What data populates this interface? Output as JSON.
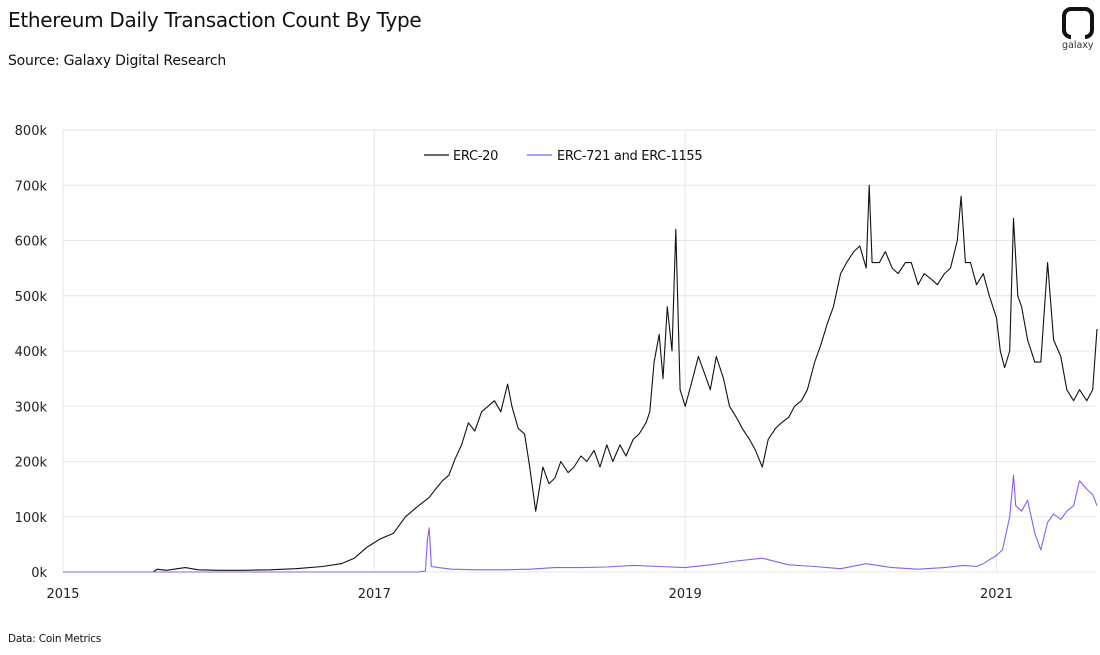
{
  "title": "Ethereum Daily Transaction Count By Type",
  "subtitle": "Source: Galaxy Digital Research",
  "footnote": "Data: Coin Metrics",
  "logo": {
    "text": "galaxy",
    "icon": "galaxy-logo-icon"
  },
  "colors": {
    "erc20": "#111111",
    "nft": "#8b5cf6",
    "grid": "#e6e6e6"
  },
  "chart_data": {
    "type": "line",
    "title": "Ethereum Daily Transaction Count By Type",
    "subtitle": "Source: Galaxy Digital Research",
    "xlabel": "",
    "ylabel": "",
    "x_ticks": [
      "2015",
      "2017",
      "2019",
      "2021"
    ],
    "y_ticks": [
      "0k",
      "100k",
      "200k",
      "300k",
      "400k",
      "500k",
      "600k",
      "700k",
      "800k"
    ],
    "xlim": [
      "2015-01-01",
      "2021-08-25"
    ],
    "ylim": [
      0,
      800000
    ],
    "grid": true,
    "legend": "top-center",
    "series": [
      {
        "name": "ERC-20",
        "color": "#111111",
        "x": [
          "2015-01-01",
          "2015-08-01",
          "2015-08-10",
          "2015-09-01",
          "2015-10-15",
          "2015-11-15",
          "2016-01-01",
          "2016-03-01",
          "2016-05-01",
          "2016-07-01",
          "2016-09-01",
          "2016-10-15",
          "2016-11-15",
          "2016-12-15",
          "2017-01-15",
          "2017-02-15",
          "2017-03-15",
          "2017-04-15",
          "2017-05-10",
          "2017-05-25",
          "2017-06-10",
          "2017-06-25",
          "2017-07-10",
          "2017-07-25",
          "2017-08-10",
          "2017-08-25",
          "2017-09-10",
          "2017-09-25",
          "2017-10-10",
          "2017-10-25",
          "2017-11-10",
          "2017-11-20",
          "2017-12-05",
          "2017-12-20",
          "2018-01-01",
          "2018-01-15",
          "2018-02-01",
          "2018-02-15",
          "2018-03-01",
          "2018-03-15",
          "2018-04-01",
          "2018-04-15",
          "2018-05-01",
          "2018-05-15",
          "2018-06-01",
          "2018-06-15",
          "2018-07-01",
          "2018-07-15",
          "2018-08-01",
          "2018-08-15",
          "2018-09-01",
          "2018-09-15",
          "2018-10-01",
          "2018-10-10",
          "2018-10-20",
          "2018-11-01",
          "2018-11-10",
          "2018-11-20",
          "2018-12-01",
          "2018-12-10",
          "2018-12-20",
          "2019-01-01",
          "2019-01-15",
          "2019-02-01",
          "2019-02-15",
          "2019-03-01",
          "2019-03-15",
          "2019-04-01",
          "2019-04-15",
          "2019-05-01",
          "2019-05-15",
          "2019-06-01",
          "2019-06-15",
          "2019-07-01",
          "2019-07-15",
          "2019-08-01",
          "2019-08-15",
          "2019-09-01",
          "2019-09-15",
          "2019-10-01",
          "2019-10-15",
          "2019-11-01",
          "2019-11-15",
          "2019-12-01",
          "2019-12-15",
          "2020-01-01",
          "2020-01-15",
          "2020-02-01",
          "2020-02-15",
          "2020-03-01",
          "2020-03-08",
          "2020-03-15",
          "2020-04-01",
          "2020-04-15",
          "2020-05-01",
          "2020-05-15",
          "2020-06-01",
          "2020-06-15",
          "2020-07-01",
          "2020-07-15",
          "2020-08-01",
          "2020-08-15",
          "2020-09-01",
          "2020-09-15",
          "2020-10-01",
          "2020-10-10",
          "2020-10-20",
          "2020-11-01",
          "2020-11-15",
          "2020-12-01",
          "2020-12-15",
          "2021-01-01",
          "2021-01-10",
          "2021-01-20",
          "2021-02-01",
          "2021-02-10",
          "2021-02-20",
          "2021-03-01",
          "2021-03-15",
          "2021-04-01",
          "2021-04-15",
          "2021-05-01",
          "2021-05-15",
          "2021-06-01",
          "2021-06-15",
          "2021-07-01",
          "2021-07-15",
          "2021-08-01",
          "2021-08-15",
          "2021-08-25"
        ],
        "y": [
          0,
          0,
          5000,
          3000,
          8000,
          4000,
          3000,
          3000,
          4000,
          6000,
          10000,
          15000,
          25000,
          45000,
          60000,
          70000,
          100000,
          120000,
          135000,
          150000,
          165000,
          175000,
          205000,
          230000,
          270000,
          255000,
          290000,
          300000,
          310000,
          290000,
          340000,
          300000,
          260000,
          250000,
          190000,
          110000,
          190000,
          160000,
          170000,
          200000,
          180000,
          190000,
          210000,
          200000,
          220000,
          190000,
          230000,
          200000,
          230000,
          210000,
          240000,
          250000,
          270000,
          290000,
          380000,
          430000,
          350000,
          480000,
          400000,
          620000,
          330000,
          300000,
          340000,
          390000,
          360000,
          330000,
          390000,
          350000,
          300000,
          280000,
          260000,
          240000,
          220000,
          190000,
          240000,
          260000,
          270000,
          280000,
          300000,
          310000,
          330000,
          380000,
          410000,
          450000,
          480000,
          540000,
          560000,
          580000,
          590000,
          550000,
          700000,
          560000,
          560000,
          580000,
          550000,
          540000,
          560000,
          560000,
          520000,
          540000,
          530000,
          520000,
          540000,
          550000,
          600000,
          680000,
          560000,
          560000,
          520000,
          540000,
          500000,
          460000,
          400000,
          370000,
          400000,
          640000,
          500000,
          480000,
          420000,
          380000,
          380000,
          560000,
          420000,
          390000,
          330000,
          310000,
          330000,
          310000,
          330000,
          440000
        ]
      },
      {
        "name": "ERC-721 and ERC-1155",
        "color": "#8b5cf6",
        "x": [
          "2015-01-01",
          "2016-12-31",
          "2017-04-15",
          "2017-05-01",
          "2017-05-06",
          "2017-05-10",
          "2017-05-15",
          "2017-06-01",
          "2017-07-01",
          "2017-09-01",
          "2017-11-01",
          "2018-01-01",
          "2018-03-01",
          "2018-05-01",
          "2018-07-01",
          "2018-09-01",
          "2018-11-01",
          "2019-01-01",
          "2019-03-01",
          "2019-05-01",
          "2019-07-01",
          "2019-09-01",
          "2019-11-01",
          "2020-01-01",
          "2020-03-01",
          "2020-05-01",
          "2020-07-01",
          "2020-09-01",
          "2020-10-15",
          "2020-11-15",
          "2020-12-01",
          "2020-12-15",
          "2021-01-01",
          "2021-01-15",
          "2021-02-01",
          "2021-02-10",
          "2021-02-15",
          "2021-03-01",
          "2021-03-15",
          "2021-04-01",
          "2021-04-15",
          "2021-05-01",
          "2021-05-15",
          "2021-06-01",
          "2021-06-15",
          "2021-07-01",
          "2021-07-15",
          "2021-08-01",
          "2021-08-15",
          "2021-08-25"
        ],
        "y": [
          0,
          0,
          0,
          2000,
          60000,
          80000,
          10000,
          8000,
          5000,
          4000,
          4000,
          5000,
          8000,
          8000,
          9000,
          12000,
          10000,
          8000,
          13000,
          20000,
          25000,
          13000,
          10000,
          6000,
          15000,
          8000,
          5000,
          8000,
          12000,
          10000,
          15000,
          22000,
          30000,
          40000,
          100000,
          175000,
          120000,
          110000,
          130000,
          70000,
          40000,
          90000,
          105000,
          95000,
          110000,
          120000,
          165000,
          150000,
          140000,
          120000
        ]
      }
    ]
  }
}
